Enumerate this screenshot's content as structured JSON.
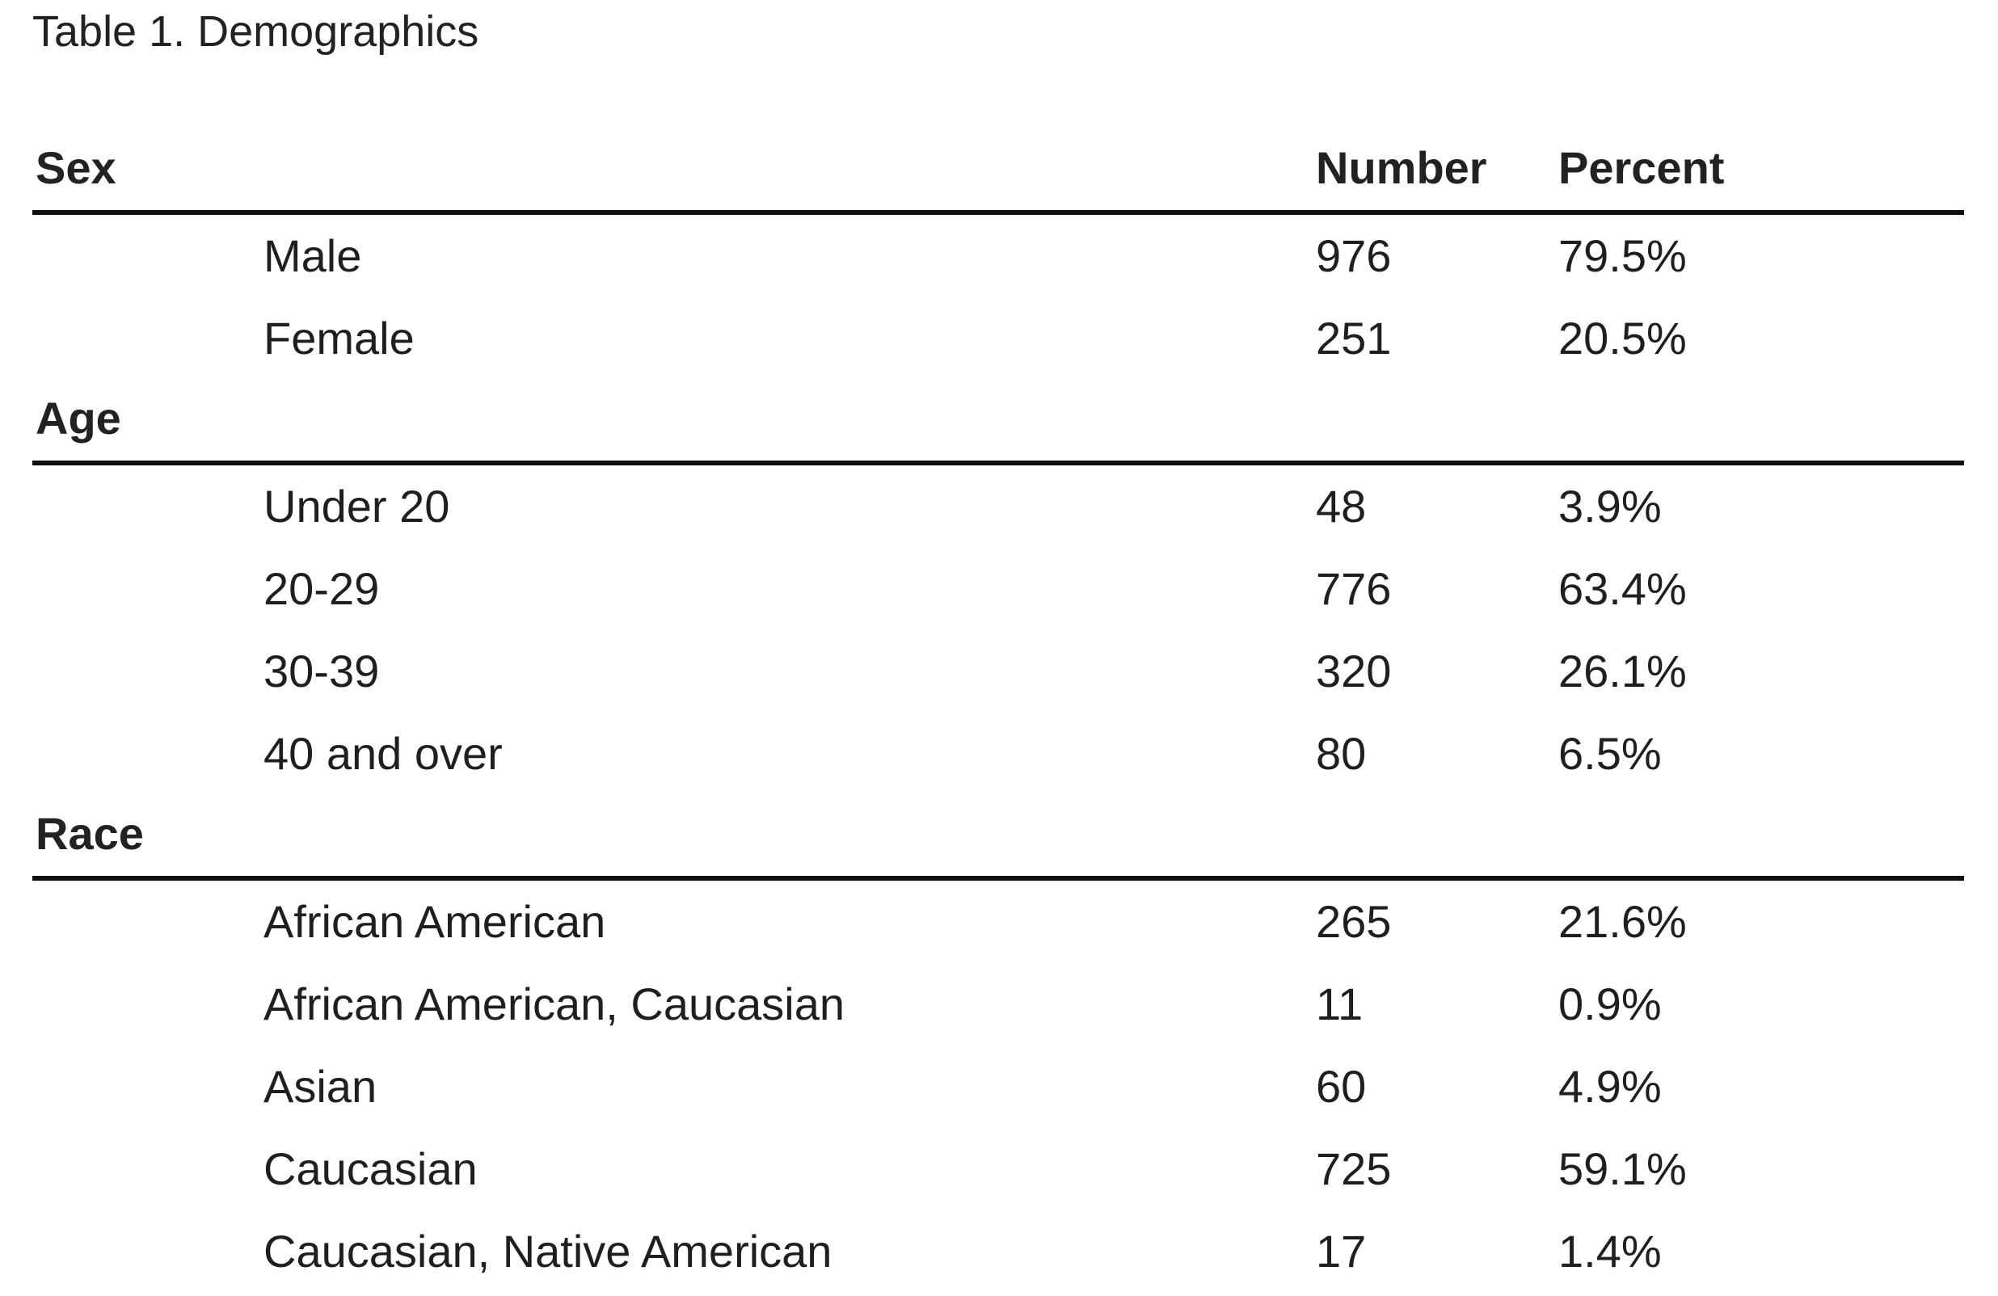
{
  "caption": "Table 1. Demographics",
  "columns": {
    "number": "Number",
    "percent": "Percent"
  },
  "sections": [
    {
      "label": "Sex",
      "rows": [
        {
          "label": "Male",
          "number": "976",
          "percent": "79.5%"
        },
        {
          "label": "Female",
          "number": "251",
          "percent": "20.5%"
        }
      ]
    },
    {
      "label": "Age",
      "rows": [
        {
          "label": "Under 20",
          "number": "48",
          "percent": "3.9%"
        },
        {
          "label": "20-29",
          "number": "776",
          "percent": "63.4%"
        },
        {
          "label": "30-39",
          "number": "320",
          "percent": "26.1%"
        },
        {
          "label": "40 and over",
          "number": "80",
          "percent": "6.5%"
        }
      ]
    },
    {
      "label": "Race",
      "rows": [
        {
          "label": "African American",
          "number": "265",
          "percent": "21.6%"
        },
        {
          "label": "African American, Caucasian",
          "number": "11",
          "percent": "0.9%"
        },
        {
          "label": "Asian",
          "number": "60",
          "percent": "4.9%"
        },
        {
          "label": "Caucasian",
          "number": "725",
          "percent": "59.1%"
        },
        {
          "label": "Caucasian, Native American",
          "number": "17",
          "percent": "1.4%"
        }
      ]
    }
  ]
}
